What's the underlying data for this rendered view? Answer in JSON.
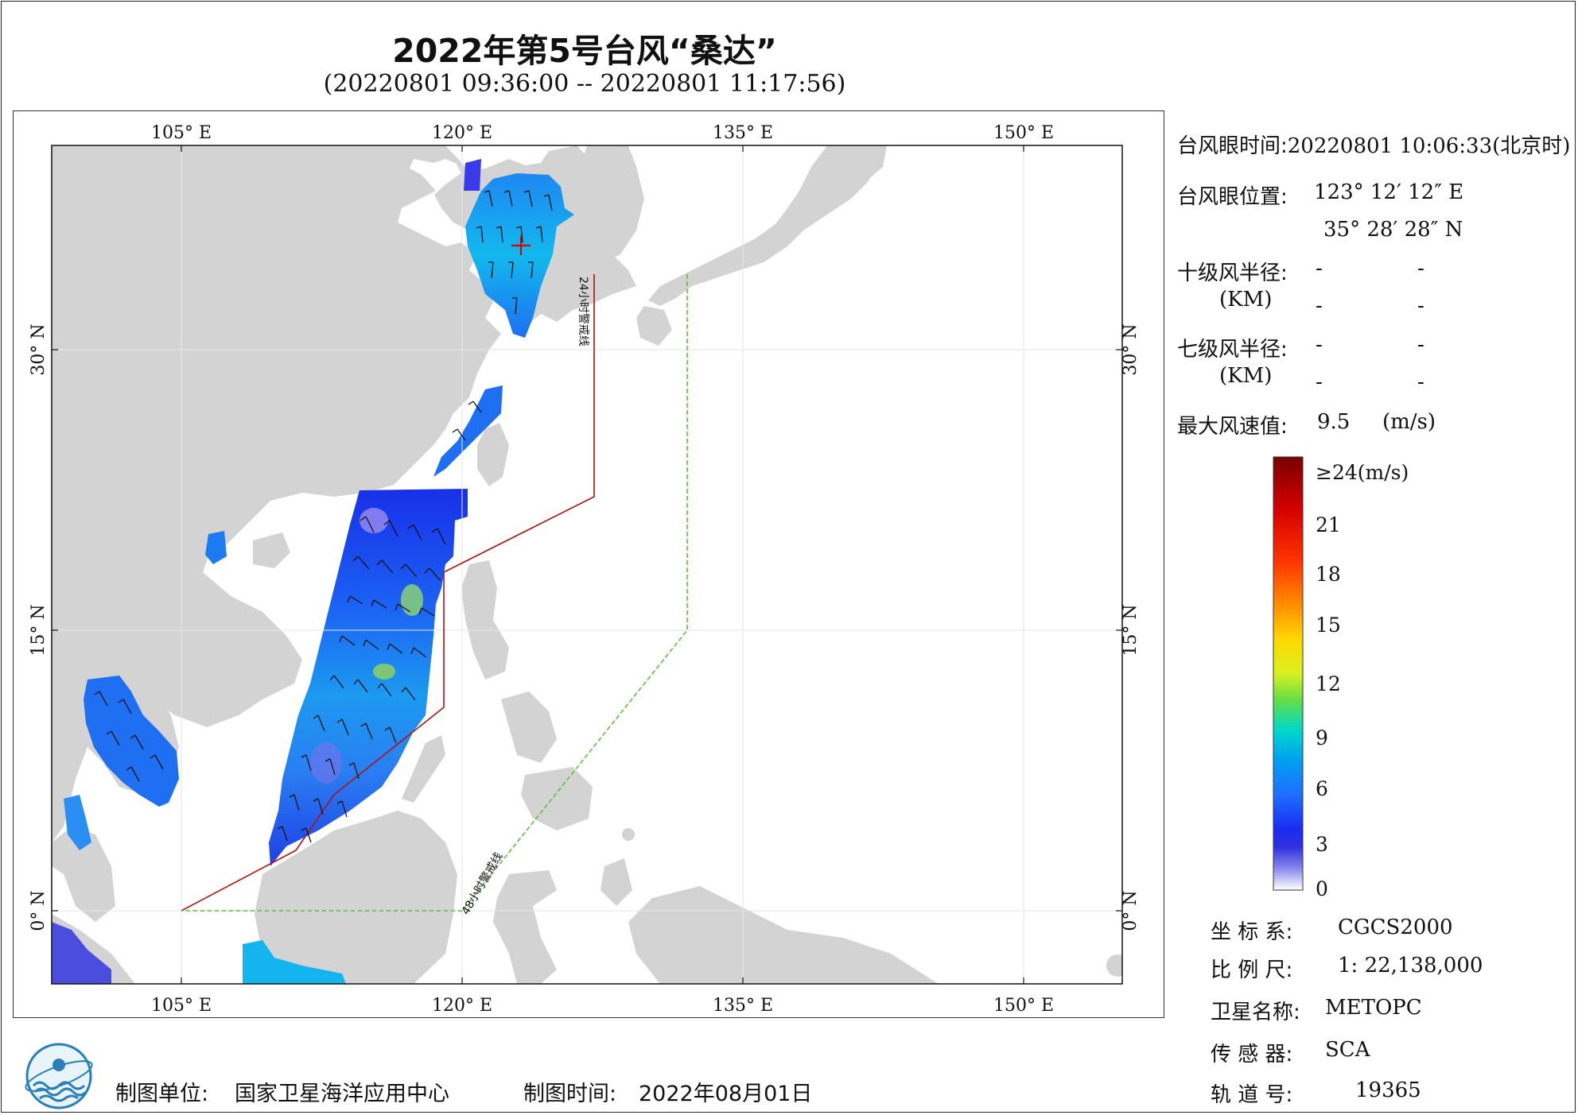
{
  "header": {
    "title": "2022年第5号台风“桑达”",
    "subtitle": "(20220801 09:36:00 -- 20220801 11:17:56)"
  },
  "map": {
    "lon_ticks": [
      "105° E",
      "120° E",
      "135° E",
      "150° E"
    ],
    "lat_ticks": [
      "30° N",
      "15° N",
      "0° N"
    ],
    "line_24h_label": "24小时警戒线",
    "line_48h_label": "48小时警戒线",
    "colors": {
      "land": "#d3d3d3",
      "sea": "#ffffff",
      "line_24h": "#b01010",
      "line_48h": "#5fbf3f",
      "eye_marker": "#e00000"
    },
    "icons": [
      "typhoon-eye-cross-icon",
      "wind-barb-icon",
      "noaa-style-logo-icon"
    ]
  },
  "info": {
    "eye_time_label": "台风眼时间:",
    "eye_time_value": "20220801 10:06:33(北京时)",
    "eye_pos_label": "台风眼位置:",
    "eye_lon": "123° 12′ 12″ E",
    "eye_lat": "35° 28′ 28″ N",
    "r10_label": "十级风半径:",
    "r7_label": "七级风半径:",
    "km_label": "(KM)",
    "dash": "-",
    "max_wind_label": "最大风速值:",
    "max_wind_value": "9.5",
    "max_wind_unit": "(m/s)"
  },
  "colorbar": {
    "labels": [
      "≥24(m/s)",
      "21",
      "18",
      "15",
      "12",
      "9",
      "6",
      "3",
      "0"
    ],
    "stops": [
      "#7a0000",
      "#d40000",
      "#ff3300",
      "#ff8c00",
      "#ffd700",
      "#e0f020",
      "#66dd44",
      "#00d8c8",
      "#00a0f0",
      "#1f6fff",
      "#1a2cf0",
      "#3030e0",
      "#8888ee",
      "#ffffff"
    ]
  },
  "meta": {
    "coord_label": "坐 标 系:",
    "coord_value": "CGCS2000",
    "scale_label": "比 例 尺:",
    "scale_value": "1: 22,138,000",
    "satellite_label": "卫星名称:",
    "satellite_value": "METOPC",
    "sensor_label": "传 感 器:",
    "sensor_value": "SCA",
    "orbit_label": "轨 道 号:",
    "orbit_value": "19365"
  },
  "footer": {
    "unit_label": "制图单位:",
    "unit_value": "国家卫星海洋应用中心",
    "time_label": "制图时间:",
    "time_value": "2022年08月01日"
  }
}
